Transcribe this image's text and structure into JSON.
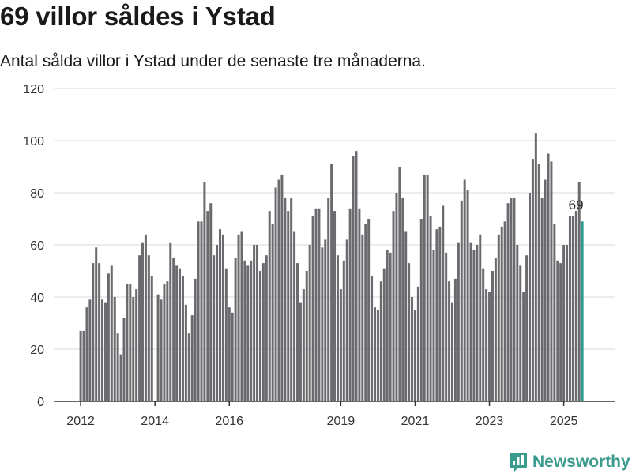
{
  "header": {
    "title": "69 villor såldes i Ystad",
    "subtitle": "Antal sålda villor i Ystad under de senaste tre månaderna."
  },
  "brand": {
    "name": "Newsworthy",
    "icon": "newsworthy-logo-icon",
    "color": "#3a9b8c"
  },
  "colors": {
    "bar": "#6b6a6e",
    "highlight": "#2a9d8f",
    "grid": "#d9d9d9",
    "axis": "#333333"
  },
  "chart_data": {
    "type": "bar",
    "title": "69 villor såldes i Ystad",
    "subtitle": "Antal sålda villor i Ystad under de senaste tre månaderna.",
    "xlabel": "",
    "ylabel": "",
    "ylim": [
      0,
      120
    ],
    "yticks": [
      0,
      20,
      40,
      60,
      80,
      100,
      120
    ],
    "grid": "horizontal",
    "x_start": "2012-01",
    "x_end": "2025-08",
    "xticks": [
      {
        "label": "2012",
        "date": "2012-01"
      },
      {
        "label": "2014",
        "date": "2014-01"
      },
      {
        "label": "2016",
        "date": "2016-01"
      },
      {
        "label": "2019",
        "date": "2019-01"
      },
      {
        "label": "2021",
        "date": "2021-01"
      },
      {
        "label": "2023",
        "date": "2023-01"
      },
      {
        "label": "2025",
        "date": "2025-01"
      }
    ],
    "highlight_last": true,
    "last_value_label": "69",
    "values": [
      27,
      27,
      36,
      39,
      53,
      59,
      53,
      39,
      38,
      49,
      52,
      40,
      26,
      18,
      32,
      45,
      45,
      40,
      43,
      56,
      61,
      64,
      56,
      48,
      0,
      41,
      39,
      45,
      46,
      61,
      55,
      52,
      51,
      48,
      37,
      26,
      33,
      47,
      69,
      69,
      84,
      73,
      76,
      56,
      60,
      66,
      64,
      51,
      36,
      34,
      55,
      64,
      65,
      54,
      52,
      54,
      60,
      60,
      50,
      53,
      56,
      73,
      68,
      82,
      85,
      87,
      78,
      73,
      78,
      65,
      53,
      38,
      43,
      50,
      60,
      71,
      74,
      74,
      59,
      62,
      78,
      91,
      73,
      56,
      43,
      54,
      62,
      74,
      94,
      96,
      74,
      64,
      68,
      70,
      48,
      36,
      35,
      46,
      51,
      58,
      57,
      73,
      80,
      90,
      78,
      65,
      53,
      40,
      35,
      44,
      70,
      87,
      87,
      71,
      58,
      66,
      67,
      75,
      57,
      46,
      38,
      47,
      61,
      77,
      85,
      81,
      61,
      58,
      60,
      64,
      51,
      43,
      42,
      50,
      55,
      64,
      67,
      69,
      76,
      78,
      78,
      60,
      52,
      42,
      56,
      80,
      93,
      103,
      91,
      78,
      85,
      95,
      92,
      68,
      54,
      53,
      60,
      60,
      71,
      71,
      73,
      84,
      69
    ]
  }
}
